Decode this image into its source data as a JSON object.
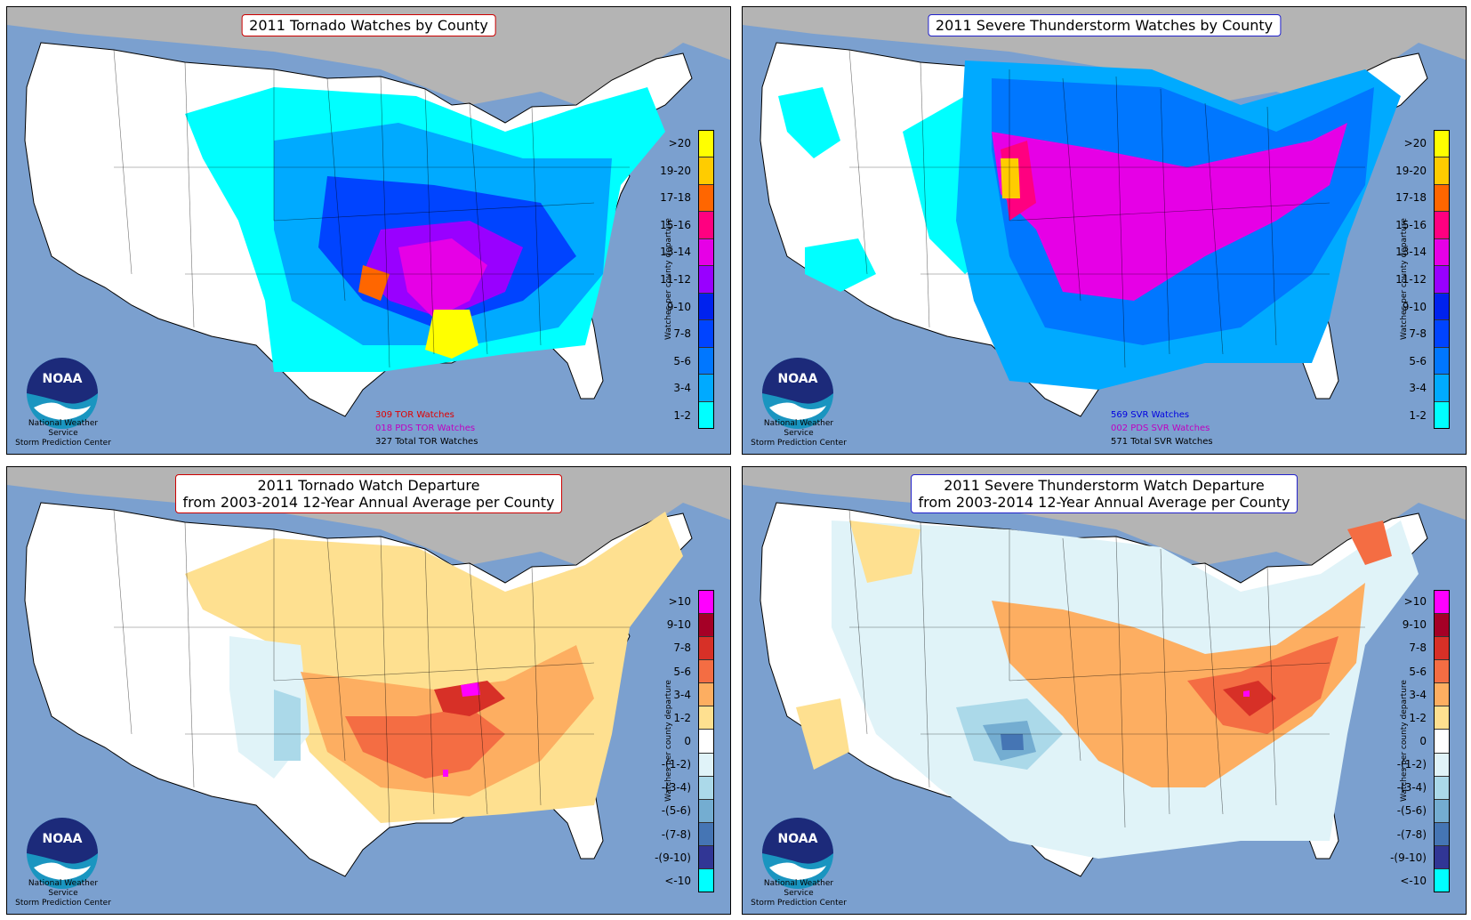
{
  "panels": [
    {
      "id": "tor-watches",
      "title_line1": "2011 Tornado Watches by County",
      "title_line2": "",
      "title_style": "tor",
      "legend_axis": "Watches per county departure",
      "legend_labels": [
        ">20",
        "19-20",
        "17-18",
        "15-16",
        "13-14",
        "11-12",
        "9-10",
        "7-8",
        "5-6",
        "3-4",
        "1-2"
      ],
      "legend_colors": [
        "#ffff00",
        "#ffcc00",
        "#ff6600",
        "#ff0080",
        "#e600e6",
        "#9900ff",
        "#0022ee",
        "#0044ff",
        "#0077ff",
        "#00aaff",
        "#00ffff"
      ],
      "counts": [
        {
          "text": "309 TOR Watches",
          "color": "red"
        },
        {
          "text": "018 PDS TOR Watches",
          "color": "mag"
        },
        {
          "text": "327 Total TOR Watches",
          "color": "blk"
        }
      ]
    },
    {
      "id": "svr-watches",
      "title_line1": "2011 Severe Thunderstorm Watches by County",
      "title_line2": "",
      "title_style": "svr",
      "legend_axis": "Watches per county departure",
      "legend_labels": [
        ">20",
        "19-20",
        "17-18",
        "15-16",
        "13-14",
        "11-12",
        "9-10",
        "7-8",
        "5-6",
        "3-4",
        "1-2"
      ],
      "legend_colors": [
        "#ffff00",
        "#ffcc00",
        "#ff6600",
        "#ff0080",
        "#e600e6",
        "#9900ff",
        "#0022ee",
        "#0044ff",
        "#0077ff",
        "#00aaff",
        "#00ffff"
      ],
      "counts": [
        {
          "text": "569 SVR Watches",
          "color": "blue"
        },
        {
          "text": "002 PDS SVR Watches",
          "color": "mag"
        },
        {
          "text": "571 Total SVR Watches",
          "color": "blk"
        }
      ]
    },
    {
      "id": "tor-departure",
      "title_line1": "2011 Tornado Watch Departure",
      "title_line2": "from 2003-2014 12-Year Annual Average per County",
      "title_style": "tor",
      "legend_axis": "Watches per county departure",
      "legend_labels": [
        ">10",
        "9-10",
        "7-8",
        "5-6",
        "3-4",
        "1-2",
        "0",
        "-(1-2)",
        "-(3-4)",
        "-(5-6)",
        "-(7-8)",
        "-(9-10)",
        "<-10"
      ],
      "legend_colors": [
        "#ff00ff",
        "#a50026",
        "#d73027",
        "#f46d43",
        "#fdae61",
        "#fee090",
        "#ffffff",
        "#e0f3f8",
        "#abd9e9",
        "#74add1",
        "#4575b4",
        "#313695",
        "#00ffff"
      ],
      "counts": []
    },
    {
      "id": "svr-departure",
      "title_line1": "2011 Severe Thunderstorm Watch Departure",
      "title_line2": "from 2003-2014 12-Year Annual Average per County",
      "title_style": "svr",
      "legend_axis": "Watches per county departure",
      "legend_labels": [
        ">10",
        "9-10",
        "7-8",
        "5-6",
        "3-4",
        "1-2",
        "0",
        "-(1-2)",
        "-(3-4)",
        "-(5-6)",
        "-(7-8)",
        "-(9-10)",
        "<-10"
      ],
      "legend_colors": [
        "#ff00ff",
        "#a50026",
        "#d73027",
        "#f46d43",
        "#fdae61",
        "#fee090",
        "#ffffff",
        "#e0f3f8",
        "#abd9e9",
        "#74add1",
        "#4575b4",
        "#313695",
        "#00ffff"
      ],
      "counts": []
    }
  ],
  "branding": {
    "logo_text": "NOAA",
    "org_line1": "National Weather Service",
    "org_line2": "Storm Prediction Center"
  },
  "colors": {
    "ocean": "#7ba0cf",
    "canada": "#b4b4b4",
    "land_us": "#ffffff"
  }
}
